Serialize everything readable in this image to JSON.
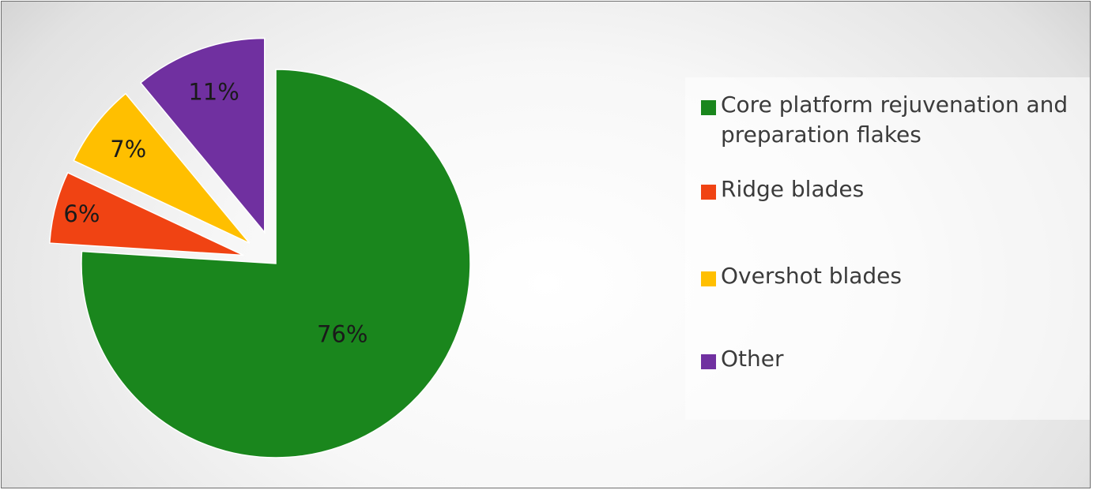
{
  "chart_data": {
    "type": "pie",
    "title": "",
    "legend_position": "right",
    "series": [
      {
        "name": "Core platform rejuvenation and preparation flakes",
        "value": 76,
        "label": "76%",
        "color": "#1a861d",
        "exploded": false
      },
      {
        "name": "Ridge blades",
        "value": 6,
        "label": "6%",
        "color": "#f04313",
        "exploded": true
      },
      {
        "name": "Overshot blades",
        "value": 7,
        "label": "7%",
        "color": "#ffbf00",
        "exploded": true
      },
      {
        "name": "Other",
        "value": 11,
        "label": "11%",
        "color": "#7030a0",
        "exploded": true
      }
    ]
  }
}
